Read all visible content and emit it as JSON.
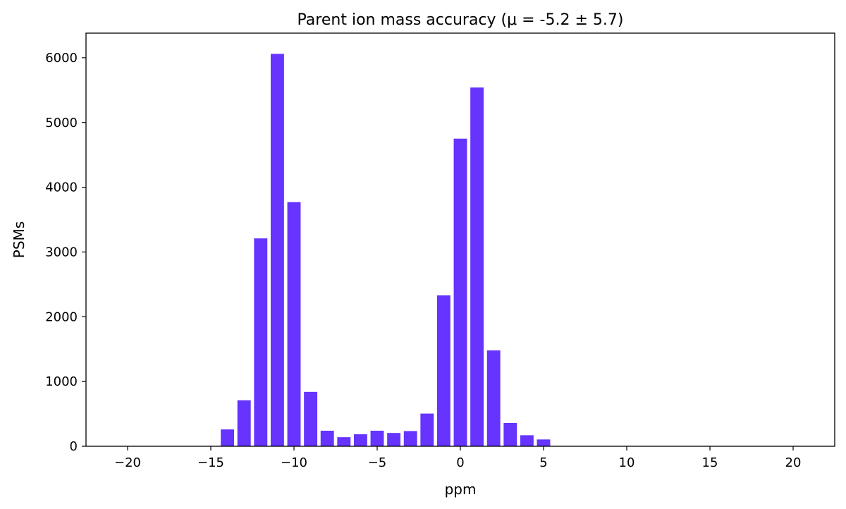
{
  "chart_data": {
    "type": "bar",
    "title": "Parent ion mass accuracy (μ = -5.2 ± 5.7)",
    "xlabel": "ppm",
    "ylabel": "PSMs",
    "xlim": [
      -22.5,
      22.5
    ],
    "ylim": [
      0,
      6380
    ],
    "xticks": [
      -20,
      -15,
      -10,
      -5,
      0,
      5,
      10,
      15,
      20
    ],
    "xtick_labels": [
      "−20",
      "−15",
      "−10",
      "−5",
      "0",
      "5",
      "10",
      "15",
      "20"
    ],
    "yticks": [
      0,
      1000,
      2000,
      3000,
      4000,
      5000,
      6000
    ],
    "ytick_labels": [
      "0",
      "1000",
      "2000",
      "3000",
      "4000",
      "5000",
      "6000"
    ],
    "bar_width": 0.8,
    "color": "#6633ff",
    "grid": false,
    "legend": false,
    "x": [
      -14,
      -13,
      -12,
      -11,
      -10,
      -9,
      -8,
      -7,
      -6,
      -5,
      -4,
      -3,
      -2,
      -1,
      0,
      1,
      2,
      3,
      4,
      5
    ],
    "values": [
      260,
      710,
      3210,
      6060,
      3770,
      840,
      240,
      140,
      185,
      240,
      205,
      235,
      505,
      2330,
      4750,
      5540,
      1480,
      360,
      170,
      105
    ]
  }
}
